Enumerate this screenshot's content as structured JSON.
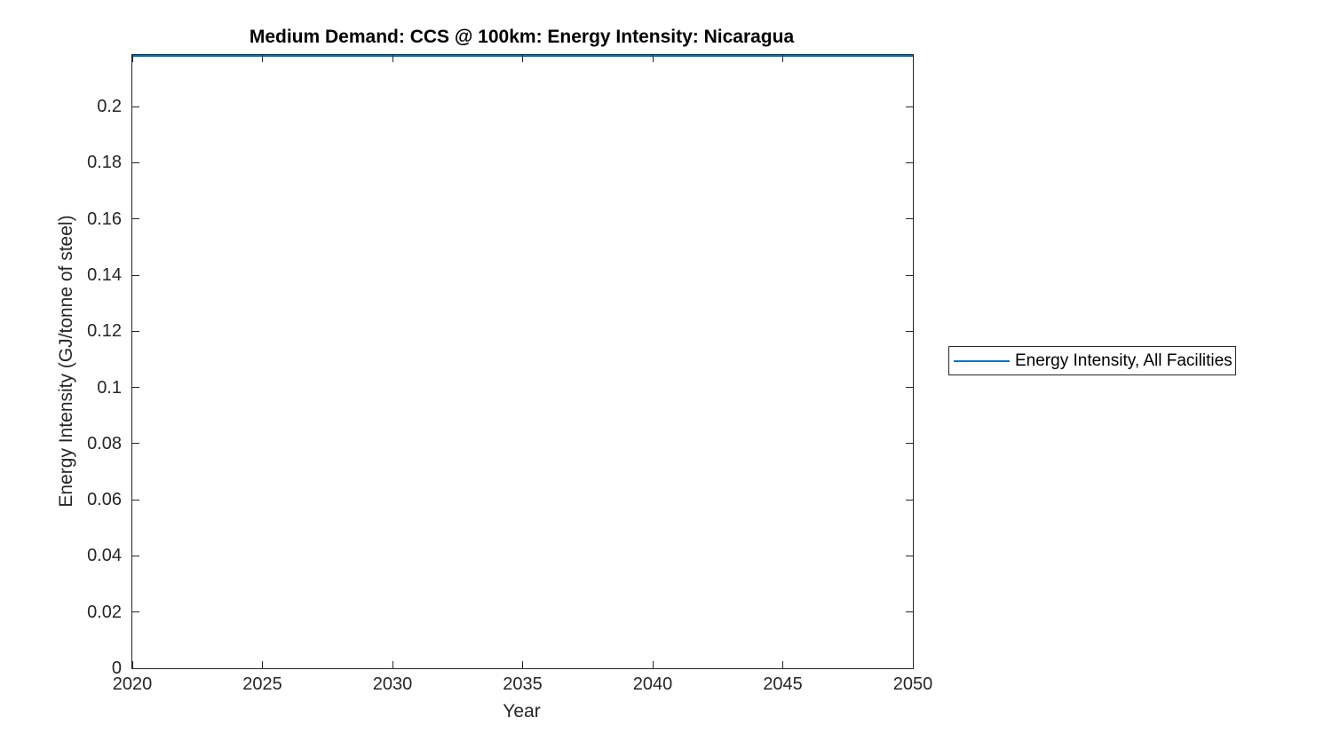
{
  "figure": {
    "background": "#ffffff",
    "axes_color": "#262626",
    "tick_label_color": "#262626",
    "title_color": "#000000"
  },
  "chart_data": {
    "type": "line",
    "title": "Medium Demand: CCS @ 100km: Energy Intensity: Nicaragua",
    "xlabel": "Year",
    "ylabel": "Energy Intensity (GJ/tonne of steel)",
    "xlim": [
      2020,
      2050
    ],
    "ylim": [
      0,
      0.2184
    ],
    "x_ticks": [
      2020,
      2025,
      2030,
      2035,
      2040,
      2045,
      2050
    ],
    "y_ticks": [
      0,
      0.02,
      0.04,
      0.06,
      0.08,
      0.1,
      0.12,
      0.14,
      0.16,
      0.18,
      0.2
    ],
    "grid": false,
    "legend": {
      "position": "right-outside",
      "entries": [
        {
          "label": "Energy Intensity, All Facilities",
          "color": "#0072BD",
          "marker": "line"
        }
      ]
    },
    "series": [
      {
        "name": "Energy Intensity, All Facilities",
        "color": "#0072BD",
        "x": [
          2020,
          2050
        ],
        "values": [
          0.2184,
          0.2184
        ],
        "note": "flat horizontal line running along the top edge of the axes"
      }
    ]
  }
}
